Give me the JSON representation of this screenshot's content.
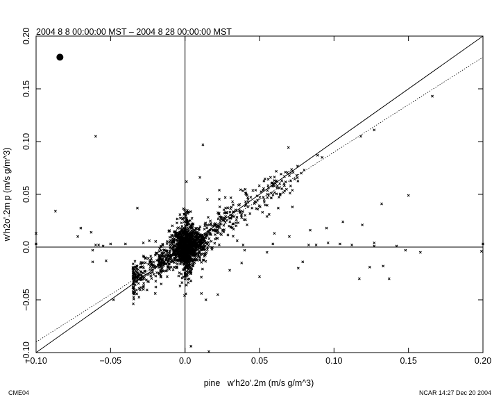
{
  "chart_data": {
    "type": "scatter",
    "title": "2004 8 8 00:00:00 MST – 2004 8 28 00:00:00 MST",
    "xlabel": "pine   w'h2o'.2m (m/s g/m^3)",
    "ylabel": "w'h2o'.2m p (m/s g/m^3)",
    "xlim": [
      -0.1,
      0.2
    ],
    "ylim": [
      -0.1,
      0.2
    ],
    "x_ticks": [
      -0.1,
      -0.05,
      0.0,
      0.05,
      0.1,
      0.15,
      0.2
    ],
    "x_tick_labels": [
      "−0.10",
      "−0.05",
      "0.0",
      "0.05",
      "0.10",
      "0.15",
      "0.20"
    ],
    "y_ticks": [
      -0.1,
      -0.05,
      0.0,
      0.05,
      0.1,
      0.15,
      0.2
    ],
    "y_tick_labels": [
      "−0.10",
      "−0.05",
      "0.0",
      "0.05",
      "0.10",
      "0.15",
      "0.20"
    ],
    "grid": false,
    "reference_lines": [
      {
        "style": "solid",
        "slope": 1.0,
        "intercept": 0.0
      },
      {
        "style": "dotted",
        "slope": 0.9,
        "intercept": 0.0
      }
    ],
    "marker_color": "#000000",
    "big_dot": {
      "x": -0.084,
      "y": 0.18
    },
    "outliers": [
      [
        -0.06,
        0.105
      ],
      [
        0.012,
        0.097
      ],
      [
        -0.087,
        0.034
      ],
      [
        -0.1,
        0.013
      ],
      [
        -0.1,
        0.003
      ],
      [
        -0.07,
        0.018
      ],
      [
        -0.072,
        0.01
      ],
      [
        -0.063,
        0.014
      ],
      [
        -0.058,
        0.002
      ],
      [
        -0.055,
        0.001
      ],
      [
        -0.05,
        0.003
      ],
      [
        -0.062,
        -0.003
      ],
      [
        -0.06,
        0.002
      ],
      [
        -0.062,
        -0.014
      ],
      [
        -0.053,
        -0.013
      ],
      [
        -0.048,
        -0.05
      ],
      [
        -0.032,
        0.037
      ],
      [
        -0.035,
        -0.022
      ],
      [
        0.041,
        0.05
      ],
      [
        0.01,
        0.066
      ],
      [
        0.001,
        0.062
      ],
      [
        0.015,
        0.045
      ],
      [
        0.027,
        0.047
      ],
      [
        0.023,
        0.054
      ],
      [
        0.166,
        0.143
      ],
      [
        0.127,
        0.111
      ],
      [
        0.118,
        0.105
      ],
      [
        0.089,
        0.087
      ],
      [
        0.092,
        0.085
      ],
      [
        0.08,
        0.073
      ],
      [
        0.078,
        0.07
      ],
      [
        0.075,
        0.068
      ],
      [
        0.065,
        0.063
      ],
      [
        0.062,
        0.058
      ],
      [
        0.15,
        0.049
      ],
      [
        0.132,
        0.041
      ],
      [
        0.106,
        0.024
      ],
      [
        0.119,
        0.021
      ],
      [
        0.095,
        0.018
      ],
      [
        0.084,
        0.016
      ],
      [
        0.06,
        0.013
      ],
      [
        0.07,
        0.01
      ],
      [
        0.083,
        0.002
      ],
      [
        0.088,
        0.002
      ],
      [
        0.096,
        0.004
      ],
      [
        0.104,
        0.003
      ],
      [
        0.112,
        0.002
      ],
      [
        0.127,
        0.004
      ],
      [
        0.142,
        0.001
      ],
      [
        0.148,
        -0.003
      ],
      [
        0.158,
        -0.005
      ],
      [
        0.199,
        -0.004
      ],
      [
        0.2,
        0.003
      ],
      [
        0.127,
        0.001
      ],
      [
        0.124,
        -0.019
      ],
      [
        0.117,
        -0.03
      ],
      [
        0.133,
        -0.018
      ],
      [
        0.137,
        -0.03
      ],
      [
        0.079,
        -0.014
      ],
      [
        0.076,
        -0.02
      ],
      [
        0.055,
        -0.005
      ],
      [
        0.05,
        -0.028
      ],
      [
        0.059,
        0.003
      ],
      [
        0.035,
        0.006
      ],
      [
        0.039,
        0.002
      ],
      [
        0.004,
        -0.094
      ],
      [
        0.016,
        -0.099
      ],
      [
        0.0,
        -0.03
      ],
      [
        0.011,
        -0.044
      ],
      [
        0.014,
        -0.05
      ],
      [
        0.004,
        -0.032
      ],
      [
        0.022,
        -0.045
      ],
      [
        0.03,
        -0.022
      ],
      [
        -0.012,
        -0.028
      ],
      [
        -0.016,
        -0.035
      ],
      [
        -0.02,
        -0.044
      ],
      [
        -0.028,
        -0.038
      ],
      [
        0.038,
        -0.015
      ],
      [
        0.04,
        -0.003
      ],
      [
        -0.04,
        0.003
      ],
      [
        -0.028,
        0.004
      ],
      [
        -0.024,
        0.006
      ],
      [
        0.055,
        0.029
      ],
      [
        0.045,
        0.037
      ],
      [
        0.052,
        0.033
      ]
    ],
    "cluster": {
      "count": 1700,
      "seed": 11,
      "x_range": [
        -0.035,
        0.082
      ],
      "dense_core_x_sd": 0.006,
      "dense_core_y_sd": 0.008,
      "trend_slope": 0.9,
      "trend_scatter_y_sd": 0.006
    }
  },
  "footer": {
    "left_label": "CME04",
    "right_label": "NCAR 14:27 Dec 20 2004"
  }
}
